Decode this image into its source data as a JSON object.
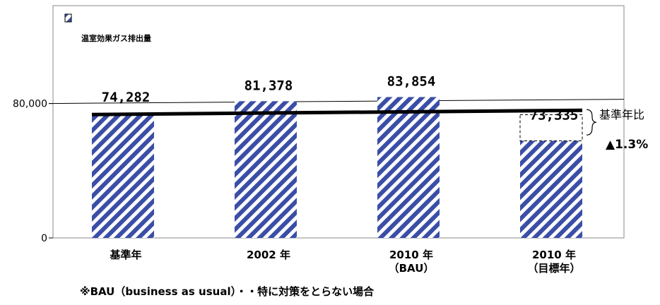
{
  "chart_data": {
    "type": "bar",
    "categories": [
      "基準年",
      "2002 年",
      "2010 年\n（BAU）",
      "2010 年\n（目標年）"
    ],
    "values": [
      74282,
      81378,
      83854,
      73335
    ],
    "value_labels": [
      "74,282",
      "81,378",
      "83,854",
      "73,335"
    ],
    "series": [
      {
        "name": "温室効果ガス排出量",
        "values": [
          74282,
          81378,
          83854,
          73335
        ],
        "color": "#3b4ea6"
      }
    ],
    "yticks": [
      {
        "value": 0,
        "label": "0"
      },
      {
        "value": 80000,
        "label": "80,000"
      }
    ],
    "title": "",
    "xlabel": "",
    "ylabel": "",
    "legend": {
      "position": "top-left"
    },
    "grid": true,
    "reference_line": {
      "label": "基準年比",
      "value_text": "▲1.3%"
    },
    "footnote": "※BAU（business as usual）・・特に対策をとらない場合"
  }
}
